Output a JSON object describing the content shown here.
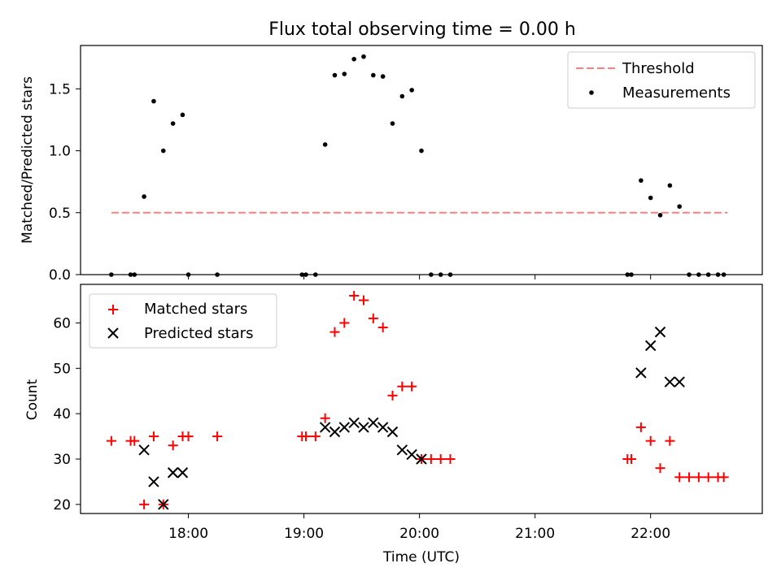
{
  "title": "Flux total observing time = 0.00 h",
  "xlabel": "Time (UTC)",
  "colors": {
    "threshold": "#ff7f7f",
    "measurements": "#000000",
    "matched": "#ff0000",
    "predicted": "#000000"
  },
  "chart_data": [
    {
      "type": "scatter",
      "title": "Flux total observing time = 0.00 h",
      "xlabel": "",
      "ylabel": "Matched/Predicted stars",
      "xlim": [
        "17:04",
        "22:58"
      ],
      "ylim": [
        0,
        1.85
      ],
      "yticks": [
        "0.0",
        "0.5",
        "1.0",
        "1.5"
      ],
      "yticks_values": [
        0,
        0.5,
        1.0,
        1.5
      ],
      "xticks_values": [
        "18:00",
        "19:00",
        "20:00",
        "21:00",
        "22:00"
      ],
      "xticks_labels_shown": false,
      "legend": {
        "position": "top-right",
        "entries": [
          "Threshold",
          "Measurements"
        ]
      },
      "series": [
        {
          "name": "Threshold",
          "style": "dashed-line",
          "color": "#ff7f7f",
          "x": [
            "17:20",
            "22:40"
          ],
          "y": [
            0.5,
            0.5
          ]
        },
        {
          "name": "Measurements",
          "style": "dot",
          "color": "#000000",
          "x": [
            "17:20",
            "17:30",
            "17:32",
            "17:37",
            "17:42",
            "17:47",
            "17:52",
            "17:57",
            "18:00",
            "18:15",
            "18:59",
            "19:01",
            "19:06",
            "19:11",
            "19:16",
            "19:21",
            "19:26",
            "19:31",
            "19:36",
            "19:41",
            "19:46",
            "19:51",
            "19:56",
            "20:01",
            "20:06",
            "20:11",
            "20:16",
            "21:48",
            "21:50",
            "21:55",
            "22:00",
            "22:05",
            "22:10",
            "22:15",
            "22:20",
            "22:25",
            "22:30",
            "22:35",
            "22:38"
          ],
          "y": [
            0,
            0,
            0,
            0.63,
            1.4,
            1.0,
            1.22,
            1.29,
            0,
            0,
            0,
            0,
            0,
            1.05,
            1.61,
            1.62,
            1.74,
            1.76,
            1.61,
            1.6,
            1.22,
            1.44,
            1.49,
            1.0,
            0,
            0,
            0,
            0,
            0,
            0.76,
            0.62,
            0.48,
            0.72,
            0.55,
            0,
            0,
            0,
            0,
            0
          ]
        }
      ]
    },
    {
      "type": "scatter",
      "title": "",
      "xlabel": "Time (UTC)",
      "ylabel": "Count",
      "xlim": [
        "17:04",
        "22:58"
      ],
      "ylim": [
        18,
        68.5
      ],
      "yticks": [
        "20",
        "30",
        "40",
        "50",
        "60"
      ],
      "yticks_values": [
        20,
        30,
        40,
        50,
        60
      ],
      "xticks": [
        "18:00",
        "19:00",
        "20:00",
        "21:00",
        "22:00"
      ],
      "legend": {
        "position": "top-left",
        "entries": [
          "Matched stars",
          "Predicted stars"
        ]
      },
      "series": [
        {
          "name": "Matched stars",
          "marker": "plus",
          "color": "#ff0000",
          "x": [
            "17:20",
            "17:30",
            "17:32",
            "17:37",
            "17:42",
            "17:47",
            "17:52",
            "17:57",
            "18:00",
            "18:15",
            "18:59",
            "19:01",
            "19:06",
            "19:11",
            "19:16",
            "19:21",
            "19:26",
            "19:31",
            "19:36",
            "19:41",
            "19:46",
            "19:51",
            "19:56",
            "20:01",
            "20:06",
            "20:11",
            "20:16",
            "21:48",
            "21:50",
            "21:55",
            "22:00",
            "22:05",
            "22:10",
            "22:15",
            "22:20",
            "22:25",
            "22:30",
            "22:35",
            "22:38"
          ],
          "y": [
            34,
            34,
            34,
            20,
            35,
            20,
            33,
            35,
            35,
            35,
            35,
            35,
            35,
            39,
            58,
            60,
            66,
            65,
            61,
            59,
            44,
            46,
            46,
            30,
            30,
            30,
            30,
            30,
            30,
            37,
            34,
            28,
            34,
            26,
            26,
            26,
            26,
            26,
            26
          ]
        },
        {
          "name": "Predicted stars",
          "marker": "x",
          "color": "#000000",
          "x": [
            "17:37",
            "17:42",
            "17:47",
            "17:52",
            "17:57",
            "19:11",
            "19:16",
            "19:21",
            "19:26",
            "19:31",
            "19:36",
            "19:41",
            "19:46",
            "19:51",
            "19:56",
            "20:01",
            "21:55",
            "22:00",
            "22:05",
            "22:10",
            "22:15"
          ],
          "y": [
            32,
            25,
            20,
            27,
            27,
            37,
            36,
            37,
            38,
            37,
            38,
            37,
            36,
            32,
            31,
            30,
            49,
            55,
            58,
            47,
            47
          ]
        }
      ]
    }
  ]
}
